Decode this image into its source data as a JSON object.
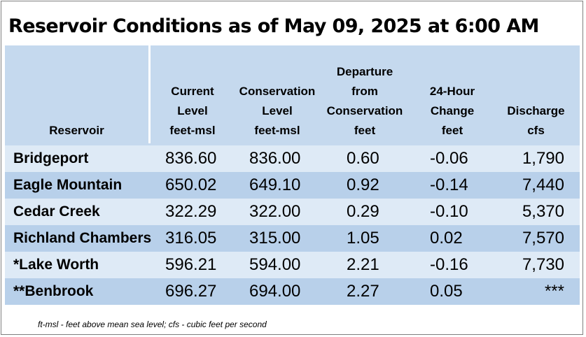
{
  "title": "Reservoir Conditions as of May 09, 2025 at 6:00 AM",
  "headers": {
    "reservoir": [
      "Reservoir"
    ],
    "current": [
      "Current",
      "Level",
      "feet-msl"
    ],
    "conservation": [
      "Conservation",
      "Level",
      "feet-msl"
    ],
    "departure": [
      "Departure",
      "from",
      "Conservation",
      "feet"
    ],
    "change": [
      "24-Hour",
      "Change",
      "feet"
    ],
    "discharge": [
      "Discharge",
      "cfs"
    ]
  },
  "rows": [
    {
      "name": "Bridgeport",
      "current": "836.60",
      "conservation": "836.00",
      "departure": "0.60",
      "change": "-0.06",
      "discharge": "1,790"
    },
    {
      "name": "Eagle Mountain",
      "current": "650.02",
      "conservation": "649.10",
      "departure": "0.92",
      "change": "-0.14",
      "discharge": "7,440"
    },
    {
      "name": "Cedar Creek",
      "current": "322.29",
      "conservation": "322.00",
      "departure": "0.29",
      "change": "-0.10",
      "discharge": "5,370"
    },
    {
      "name": "Richland Chambers",
      "current": "316.05",
      "conservation": "315.00",
      "departure": "1.05",
      "change": "0.02",
      "discharge": "7,570"
    },
    {
      "name": "*Lake Worth",
      "current": "596.21",
      "conservation": "594.00",
      "departure": "2.21",
      "change": "-0.16",
      "discharge": "7,730"
    },
    {
      "name": "**Benbrook",
      "current": "696.27",
      "conservation": "694.00",
      "departure": "2.27",
      "change": "0.05",
      "discharge": "***"
    }
  ],
  "footnote": "ft-msl - feet above mean sea level; cfs - cubic feet per second",
  "colors": {
    "header_bg": "#c5d9ee",
    "row_light": "#deeaf6",
    "row_dark": "#b8d0ea",
    "divider": "#ffffff"
  }
}
